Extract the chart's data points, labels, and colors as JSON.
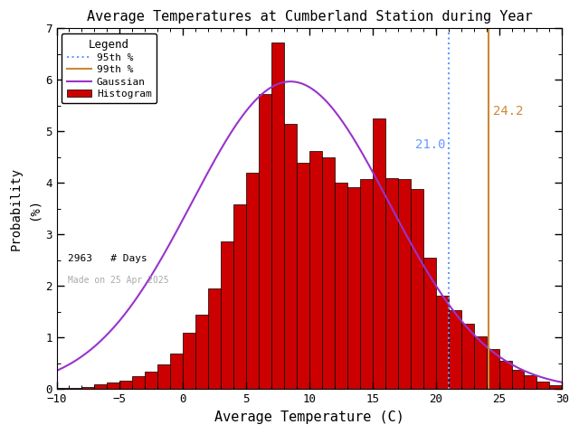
{
  "title": "Average Temperatures at Cumberland Station during Year",
  "xlabel": "Average Temperature (C)",
  "ylabel": "Probability\n(%)",
  "xlim": [
    -10,
    30
  ],
  "ylim": [
    0,
    7
  ],
  "yticks": [
    0,
    1,
    2,
    3,
    4,
    5,
    6,
    7
  ],
  "xticks": [
    -10,
    -5,
    0,
    5,
    10,
    15,
    20,
    25,
    30
  ],
  "bin_left_edges": [
    -10,
    -9,
    -8,
    -7,
    -6,
    -5,
    -4,
    -3,
    -2,
    -1,
    0,
    1,
    2,
    3,
    4,
    5,
    6,
    7,
    8,
    9,
    10,
    11,
    12,
    13,
    14,
    15,
    16,
    17,
    18,
    19,
    20,
    21,
    22,
    23,
    24,
    25,
    26,
    27,
    28,
    29
  ],
  "bar_heights": [
    0.03,
    0.03,
    0.05,
    0.1,
    0.13,
    0.17,
    0.25,
    0.35,
    0.48,
    0.7,
    1.1,
    1.45,
    1.95,
    2.87,
    3.58,
    4.2,
    5.72,
    6.72,
    5.15,
    4.4,
    4.62,
    4.5,
    4.0,
    3.92,
    4.08,
    5.25,
    4.1,
    4.08,
    3.88,
    2.55
  ],
  "bar_heights_right": [
    1.82,
    1.53,
    1.27,
    1.03,
    0.78,
    0.55,
    0.38,
    0.27,
    0.15,
    0.07
  ],
  "gaussian_mean": 8.5,
  "gaussian_std": 7.8,
  "gaussian_scale": 5.97,
  "percentile_95": 21.0,
  "percentile_99": 24.2,
  "n_days": 2963,
  "made_on": "Made on 25 Apr 2025",
  "bar_color": "#cc0000",
  "bar_edge_color": "#000000",
  "gaussian_color": "#9933cc",
  "p95_color": "#6699ff",
  "p99_color": "#cc8833",
  "p95_label": "95th %",
  "p99_label": "99th %",
  "gaussian_label": "Gaussian",
  "hist_label": "Histogram",
  "background_color": "#ffffff",
  "legend_title": "Legend",
  "fig_width": 6.4,
  "fig_height": 4.8,
  "dpi": 100
}
